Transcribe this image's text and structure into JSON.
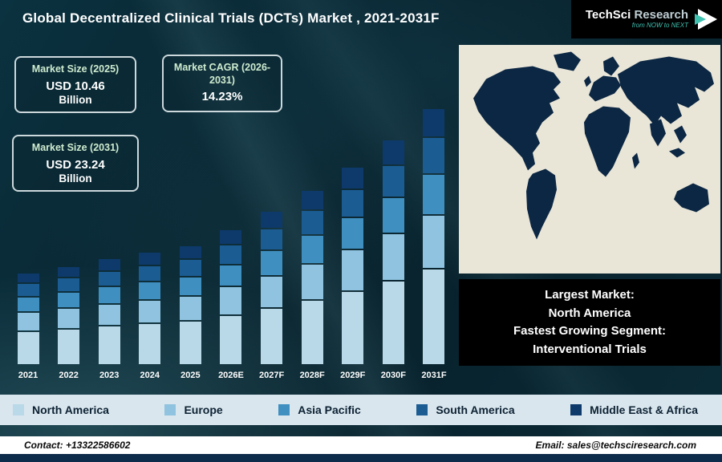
{
  "header": {
    "title": "Global Decentralized Clinical Trials (DCTs) Market , 2021-2031F",
    "logo": {
      "brand_primary": "TechSci",
      "brand_secondary": " Research",
      "tagline": "from NOW to NEXT"
    }
  },
  "info_boxes": [
    {
      "title": "Market Size (2025)",
      "value": "USD 10.46",
      "unit": "Billion"
    },
    {
      "title": "Market CAGR (2026-2031)",
      "value": "14.23%",
      "unit": ""
    },
    {
      "title": "Market Size (2031)",
      "value": "USD 23.24",
      "unit": "Billion"
    }
  ],
  "chart_data": {
    "type": "bar",
    "stacked": true,
    "title": "Global Decentralized Clinical Trials (DCTs) Market , 2021-2031F",
    "categories": [
      "2021",
      "2022",
      "2023",
      "2024",
      "2025",
      "2026E",
      "2027F",
      "2028F",
      "2029F",
      "2030F",
      "2031F"
    ],
    "series": [
      {
        "name": "North America",
        "color": "#b9d8e8",
        "values": [
          3.0,
          3.23,
          3.5,
          3.72,
          3.97,
          4.54,
          5.19,
          5.92,
          6.77,
          7.73,
          8.83
        ]
      },
      {
        "name": "Europe",
        "color": "#8fc3df",
        "values": [
          1.66,
          1.79,
          1.93,
          2.06,
          2.2,
          2.51,
          2.87,
          3.27,
          3.74,
          4.27,
          4.88
        ]
      },
      {
        "name": "Asia Pacific",
        "color": "#3f8fc0",
        "values": [
          1.26,
          1.36,
          1.47,
          1.57,
          1.67,
          1.91,
          2.18,
          2.49,
          2.85,
          3.25,
          3.72
        ]
      },
      {
        "name": "South America",
        "color": "#1b5c93",
        "values": [
          1.11,
          1.19,
          1.29,
          1.37,
          1.46,
          1.67,
          1.91,
          2.18,
          2.49,
          2.85,
          3.25
        ]
      },
      {
        "name": "Middle East & Africa",
        "color": "#0d3a6b",
        "values": [
          0.87,
          0.94,
          1.01,
          1.08,
          1.15,
          1.31,
          1.5,
          1.71,
          1.96,
          2.24,
          2.56
        ]
      }
    ],
    "totals": [
      7.9,
      8.51,
      9.2,
      9.8,
      10.46,
      11.95,
      13.65,
      15.59,
      17.81,
      20.34,
      23.24
    ],
    "ylim": [
      0,
      24
    ],
    "grid": false,
    "legend_position": "bottom",
    "annotations": {
      "market_size_2025_usd_billion": 10.46,
      "market_size_2031_usd_billion": 23.24,
      "cagr_2026_2031_percent": 14.23
    }
  },
  "callout": {
    "lines": [
      "Largest Market:",
      "North America",
      "Fastest Growing Segment:",
      "Interventional Trials"
    ]
  },
  "legend": [
    {
      "label": "North America",
      "color": "#b9d8e8"
    },
    {
      "label": "Europe",
      "color": "#8fc3df"
    },
    {
      "label": "Asia Pacific",
      "color": "#3f8fc0"
    },
    {
      "label": "South America",
      "color": "#1b5c93"
    },
    {
      "label": "Middle East & Africa",
      "color": "#0d3a6b"
    }
  ],
  "footer": {
    "contact": "Contact: +13322586602",
    "email": "Email: sales@techsciresearch.com"
  }
}
